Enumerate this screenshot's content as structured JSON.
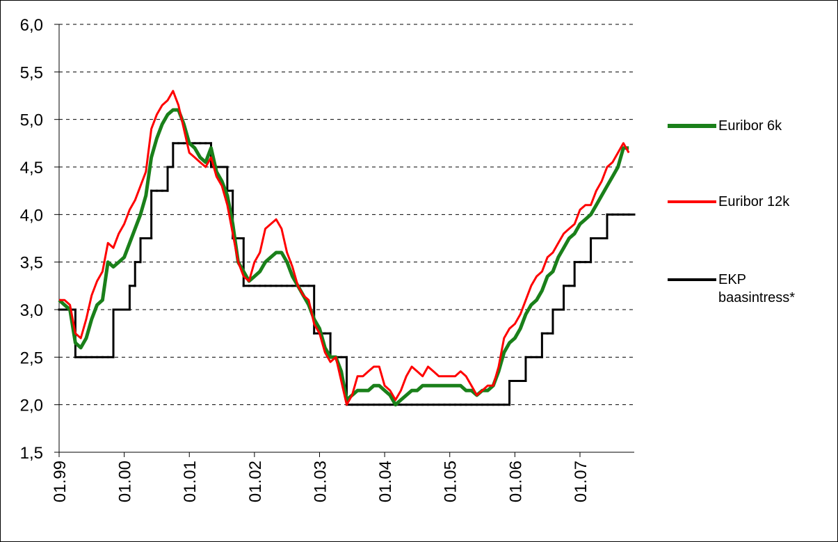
{
  "chart_data": {
    "type": "line",
    "x": [
      "01.99",
      "02.99",
      "03.99",
      "04.99",
      "05.99",
      "06.99",
      "07.99",
      "08.99",
      "09.99",
      "10.99",
      "11.99",
      "12.99",
      "01.00",
      "02.00",
      "03.00",
      "04.00",
      "05.00",
      "06.00",
      "07.00",
      "08.00",
      "09.00",
      "10.00",
      "11.00",
      "12.00",
      "01.01",
      "02.01",
      "03.01",
      "04.01",
      "05.01",
      "06.01",
      "07.01",
      "08.01",
      "09.01",
      "10.01",
      "11.01",
      "12.01",
      "01.02",
      "02.02",
      "03.02",
      "04.02",
      "05.02",
      "06.02",
      "07.02",
      "08.02",
      "09.02",
      "10.02",
      "11.02",
      "12.02",
      "01.03",
      "02.03",
      "03.03",
      "04.03",
      "05.03",
      "06.03",
      "07.03",
      "08.03",
      "09.03",
      "10.03",
      "11.03",
      "12.03",
      "01.04",
      "02.04",
      "03.04",
      "04.04",
      "05.04",
      "06.04",
      "07.04",
      "08.04",
      "09.04",
      "10.04",
      "11.04",
      "12.04",
      "01.05",
      "02.05",
      "03.05",
      "04.05",
      "05.05",
      "06.05",
      "07.05",
      "08.05",
      "09.05",
      "10.05",
      "11.05",
      "12.05",
      "01.06",
      "02.06",
      "03.06",
      "04.06",
      "05.06",
      "06.06",
      "07.06",
      "08.06",
      "09.06",
      "10.06",
      "11.06",
      "12.06",
      "01.07",
      "02.07",
      "03.07",
      "04.07",
      "05.07",
      "06.07",
      "07.07",
      "08.07",
      "09.07",
      "10.07"
    ],
    "series": [
      {
        "name": "Euribor 6k",
        "color": "#1a801a",
        "style": "line",
        "values": [
          3.1,
          3.05,
          3.0,
          2.65,
          2.6,
          2.7,
          2.9,
          3.05,
          3.1,
          3.5,
          3.45,
          3.5,
          3.55,
          3.7,
          3.85,
          4.0,
          4.2,
          4.6,
          4.8,
          4.95,
          5.05,
          5.1,
          5.1,
          4.95,
          4.75,
          4.7,
          4.6,
          4.55,
          4.7,
          4.45,
          4.35,
          4.2,
          3.9,
          3.5,
          3.4,
          3.3,
          3.35,
          3.4,
          3.5,
          3.55,
          3.6,
          3.6,
          3.5,
          3.35,
          3.25,
          3.15,
          3.05,
          2.9,
          2.8,
          2.6,
          2.5,
          2.5,
          2.35,
          2.05,
          2.1,
          2.15,
          2.15,
          2.15,
          2.2,
          2.2,
          2.15,
          2.1,
          2.0,
          2.05,
          2.1,
          2.15,
          2.15,
          2.2,
          2.2,
          2.2,
          2.2,
          2.2,
          2.2,
          2.2,
          2.2,
          2.15,
          2.15,
          2.1,
          2.15,
          2.15,
          2.2,
          2.35,
          2.55,
          2.65,
          2.7,
          2.8,
          2.95,
          3.05,
          3.1,
          3.2,
          3.35,
          3.4,
          3.55,
          3.65,
          3.75,
          3.8,
          3.9,
          3.95,
          4.0,
          4.1,
          4.2,
          4.3,
          4.4,
          4.5,
          4.7,
          4.7
        ]
      },
      {
        "name": "Euribor 12k",
        "color": "#ff0000",
        "style": "line",
        "values": [
          3.1,
          3.1,
          3.05,
          2.75,
          2.7,
          2.9,
          3.15,
          3.3,
          3.4,
          3.7,
          3.65,
          3.8,
          3.9,
          4.05,
          4.15,
          4.3,
          4.45,
          4.9,
          5.05,
          5.15,
          5.2,
          5.3,
          5.15,
          4.9,
          4.65,
          4.6,
          4.55,
          4.5,
          4.6,
          4.4,
          4.3,
          4.1,
          3.8,
          3.5,
          3.35,
          3.3,
          3.5,
          3.6,
          3.85,
          3.9,
          3.95,
          3.85,
          3.6,
          3.45,
          3.25,
          3.15,
          3.1,
          2.85,
          2.75,
          2.55,
          2.45,
          2.5,
          2.25,
          2.0,
          2.1,
          2.3,
          2.3,
          2.35,
          2.4,
          2.4,
          2.2,
          2.15,
          2.05,
          2.15,
          2.3,
          2.4,
          2.35,
          2.3,
          2.4,
          2.35,
          2.3,
          2.3,
          2.3,
          2.3,
          2.35,
          2.3,
          2.2,
          2.1,
          2.15,
          2.2,
          2.2,
          2.4,
          2.7,
          2.8,
          2.85,
          2.95,
          3.1,
          3.25,
          3.35,
          3.4,
          3.55,
          3.6,
          3.7,
          3.8,
          3.85,
          3.9,
          4.05,
          4.1,
          4.1,
          4.25,
          4.35,
          4.5,
          4.55,
          4.65,
          4.75,
          4.65
        ]
      },
      {
        "name": "EKP baasintress*",
        "color": "#000000",
        "style": "step",
        "values": [
          3.0,
          3.0,
          3.0,
          2.5,
          2.5,
          2.5,
          2.5,
          2.5,
          2.5,
          2.5,
          3.0,
          3.0,
          3.0,
          3.25,
          3.5,
          3.75,
          3.75,
          4.25,
          4.25,
          4.25,
          4.5,
          4.75,
          4.75,
          4.75,
          4.75,
          4.75,
          4.75,
          4.75,
          4.5,
          4.5,
          4.5,
          4.25,
          3.75,
          3.75,
          3.25,
          3.25,
          3.25,
          3.25,
          3.25,
          3.25,
          3.25,
          3.25,
          3.25,
          3.25,
          3.25,
          3.25,
          3.25,
          2.75,
          2.75,
          2.75,
          2.5,
          2.5,
          2.5,
          2.0,
          2.0,
          2.0,
          2.0,
          2.0,
          2.0,
          2.0,
          2.0,
          2.0,
          2.0,
          2.0,
          2.0,
          2.0,
          2.0,
          2.0,
          2.0,
          2.0,
          2.0,
          2.0,
          2.0,
          2.0,
          2.0,
          2.0,
          2.0,
          2.0,
          2.0,
          2.0,
          2.0,
          2.0,
          2.0,
          2.25,
          2.25,
          2.25,
          2.5,
          2.5,
          2.5,
          2.75,
          2.75,
          3.0,
          3.0,
          3.25,
          3.25,
          3.5,
          3.5,
          3.5,
          3.75,
          3.75,
          3.75,
          4.0,
          4.0,
          4.0,
          4.0,
          4.0
        ]
      }
    ],
    "xlim": [
      "01.99",
      "11.07"
    ],
    "xticks": [
      "01.99",
      "01.00",
      "01.01",
      "01.02",
      "01.03",
      "01.04",
      "01.05",
      "01.06",
      "01.07"
    ],
    "ylim": [
      1.5,
      6.0
    ],
    "yticks": [
      {
        "value": 1.5,
        "label": "1,5"
      },
      {
        "value": 2.0,
        "label": "2,0"
      },
      {
        "value": 2.5,
        "label": "2,5"
      },
      {
        "value": 3.0,
        "label": "3,0"
      },
      {
        "value": 3.5,
        "label": "3,5"
      },
      {
        "value": 4.0,
        "label": "4,0"
      },
      {
        "value": 4.5,
        "label": "4,5"
      },
      {
        "value": 5.0,
        "label": "5,0"
      },
      {
        "value": 5.5,
        "label": "5,5"
      },
      {
        "value": 6.0,
        "label": "6,0"
      }
    ],
    "grid": true,
    "legend": "right"
  }
}
